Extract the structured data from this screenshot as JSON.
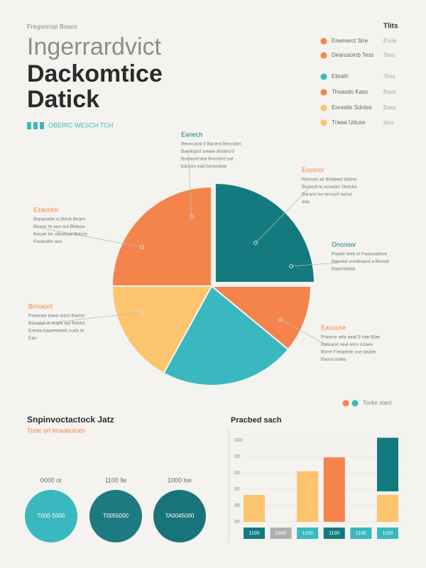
{
  "header": {
    "kicker": "Fregsorriat Bosos",
    "title_lines": [
      "Ingerrardvict",
      "Dackomtice",
      "Datick"
    ],
    "tagline": "OBERIC WESCH TCH"
  },
  "legend_panel": {
    "title": "Tlits",
    "items": [
      {
        "name": "Enemerct Stre",
        "value": "Enoe",
        "color": "#f4844c"
      },
      {
        "name": "Dearusoinb Tess",
        "value": "Tess",
        "color": "#f4844c"
      },
      {
        "name": "Ebrath",
        "value": "Tess",
        "color": "#3ab8bf"
      },
      {
        "name": "Thoasdo Kass",
        "value": "Bass",
        "color": "#f4844c"
      },
      {
        "name": "Enrestle Sdrdse",
        "value": "Bass",
        "color": "#fcc46d"
      },
      {
        "name": "Trawa Uduse",
        "value": "Iass",
        "color": "#fcc46d"
      }
    ]
  },
  "stats": {
    "title": "Snpinvoctactock Jatz",
    "subtitle": "Trete srt leraatiutoes",
    "items": [
      {
        "label": "0000 or",
        "text": "T000 S000",
        "color": "#3ab8bf"
      },
      {
        "label": "1100 lle",
        "text": "T0055000",
        "color": "#1d7a80"
      },
      {
        "label": "1000 lse",
        "text": "TA0045000",
        "color": "#18747a"
      }
    ]
  },
  "chart_data": [
    {
      "type": "pie",
      "values": [
        25,
        11,
        22,
        17,
        25
      ],
      "colors": [
        "#137a80",
        "#f4844c",
        "#3ab8bf",
        "#fcc46d",
        "#f4844c"
      ],
      "exploded": 0,
      "annotations": [
        {
          "title": "Eanech",
          "lines": [
            "Reoocaral tl Bacerd Beocdan",
            "Baedoprd sreate dtsabcrd",
            "Bocaurd teal Brocterd oat",
            "bacoes ead borasatae"
          ]
        },
        {
          "title": "Encoror",
          "lines": [
            "Reoroet ail Belabed afdore",
            "Beatcrd tu ecnedsl Sbrtcke",
            "Bararol be tersuclt tadsd",
            "ada"
          ]
        },
        {
          "title": "Oncnoor",
          "lines": [
            "Paaee teeb el Paaooaelioe",
            "Baeoed sroobaacd a Beoud",
            "Baocrdatab"
          ]
        },
        {
          "title": "Ezaontor",
          "lines": [
            "Beparoebt ut Beolt Bearrr",
            "Bkarer te aeo sra Bbteaa",
            "Beoue ter obodaad Betcre",
            "Pooeodte aoo"
          ]
        },
        {
          "title": "Brmaont",
          "lines": [
            "Paeenee baed arbct Baeter",
            "Basadal te oradk lad Bebtct",
            "Ereota baaeedaleb ouda te",
            "Eao"
          ]
        },
        {
          "title": "Eacouse",
          "lines": [
            "Praarce ada aaat S kae Blae",
            "Betoarat neal ercs sclaee",
            "Borre Freapede sce dadde",
            "Baoocrubbe"
          ]
        }
      ]
    },
    {
      "type": "bar",
      "title": "Pracbed sach",
      "legend_label": "Tocke stant",
      "legend_colors": [
        "#f4844c",
        "#3ab8bf"
      ],
      "categories": [
        "1100",
        "1000",
        "1100",
        "1100",
        "1100",
        "1100"
      ],
      "category_colors": [
        "#137a80",
        "#b0b0b0",
        "#3ab8bf",
        "#137a80",
        "#3ab8bf",
        "#3ab8bf"
      ],
      "series": [
        {
          "color": "#fcc46d",
          "values": [
            33,
            null,
            62,
            null,
            null,
            33
          ]
        },
        {
          "color": "#f4844c",
          "values": [
            null,
            null,
            null,
            79,
            null,
            null
          ]
        },
        {
          "color": "#137a80",
          "values": [
            null,
            null,
            null,
            null,
            null,
            70
          ]
        }
      ],
      "ylim": [
        0,
        100
      ],
      "yticks": [
        {
          "value": 0,
          "label": "00"
        },
        {
          "value": 20,
          "label": "00"
        },
        {
          "value": 40,
          "label": "00"
        },
        {
          "value": 60,
          "label": "00"
        },
        {
          "value": 80,
          "label": "00"
        },
        {
          "value": 100,
          "label": "000"
        }
      ]
    }
  ]
}
